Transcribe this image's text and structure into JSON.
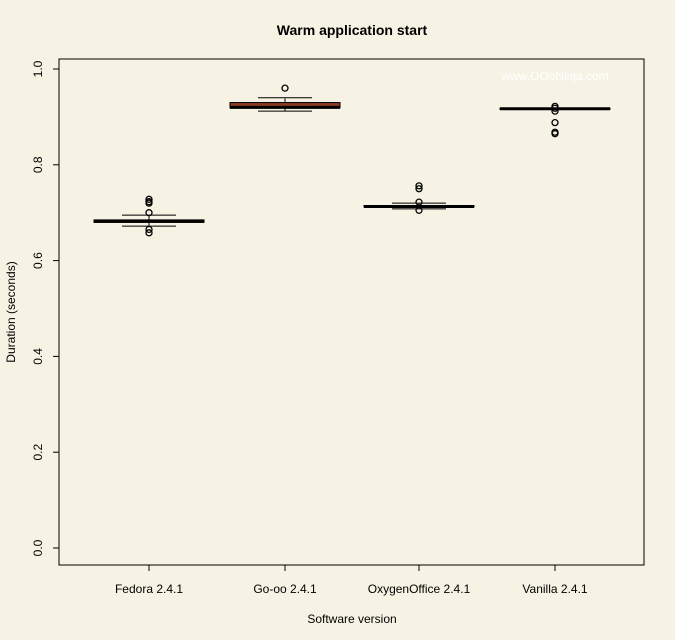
{
  "chart_data": {
    "type": "boxplot",
    "title": "Warm application start",
    "xlabel": "Software version",
    "ylabel": "Duration (seconds)",
    "watermark": "www.OOoNinja.com",
    "ylim": [
      0,
      1.0
    ],
    "yticks": [
      "0.0",
      "0.2",
      "0.4",
      "0.6",
      "0.8",
      "1.0"
    ],
    "categories": [
      "Fedora 2.4.1",
      "Go-oo 2.4.1",
      "OxygenOffice 2.4.1",
      "Vanilla 2.4.1"
    ],
    "grid": false,
    "legend": "none",
    "colors": {
      "background": "#f6f2e4",
      "box_fill_highlight": "#8b3a1f",
      "box_fill": "#f6f2e4",
      "ink": "#000000"
    },
    "boxes": [
      {
        "name": "Fedora 2.4.1",
        "whisker_low": 0.672,
        "q1": 0.68,
        "median": 0.682,
        "q3": 0.685,
        "whisker_high": 0.695,
        "fill": "box_fill",
        "outliers": [
          0.728,
          0.723,
          0.72,
          0.7,
          0.665,
          0.658
        ]
      },
      {
        "name": "Go-oo 2.4.1",
        "whisker_low": 0.912,
        "q1": 0.919,
        "median": 0.92,
        "q3": 0.93,
        "whisker_high": 0.94,
        "fill": "box_fill_highlight",
        "outliers": [
          0.96
        ]
      },
      {
        "name": "OxygenOffice 2.4.1",
        "whisker_low": 0.708,
        "q1": 0.712,
        "median": 0.713,
        "q3": 0.715,
        "whisker_high": 0.72,
        "fill": "box_fill",
        "outliers": [
          0.756,
          0.75,
          0.722,
          0.705
        ]
      },
      {
        "name": "Vanilla 2.4.1",
        "whisker_low": 0.916,
        "q1": 0.916,
        "median": 0.917,
        "q3": 0.918,
        "whisker_high": 0.918,
        "fill": "box_fill",
        "outliers": [
          0.922,
          0.918,
          0.912,
          0.888,
          0.868,
          0.865
        ]
      }
    ]
  }
}
